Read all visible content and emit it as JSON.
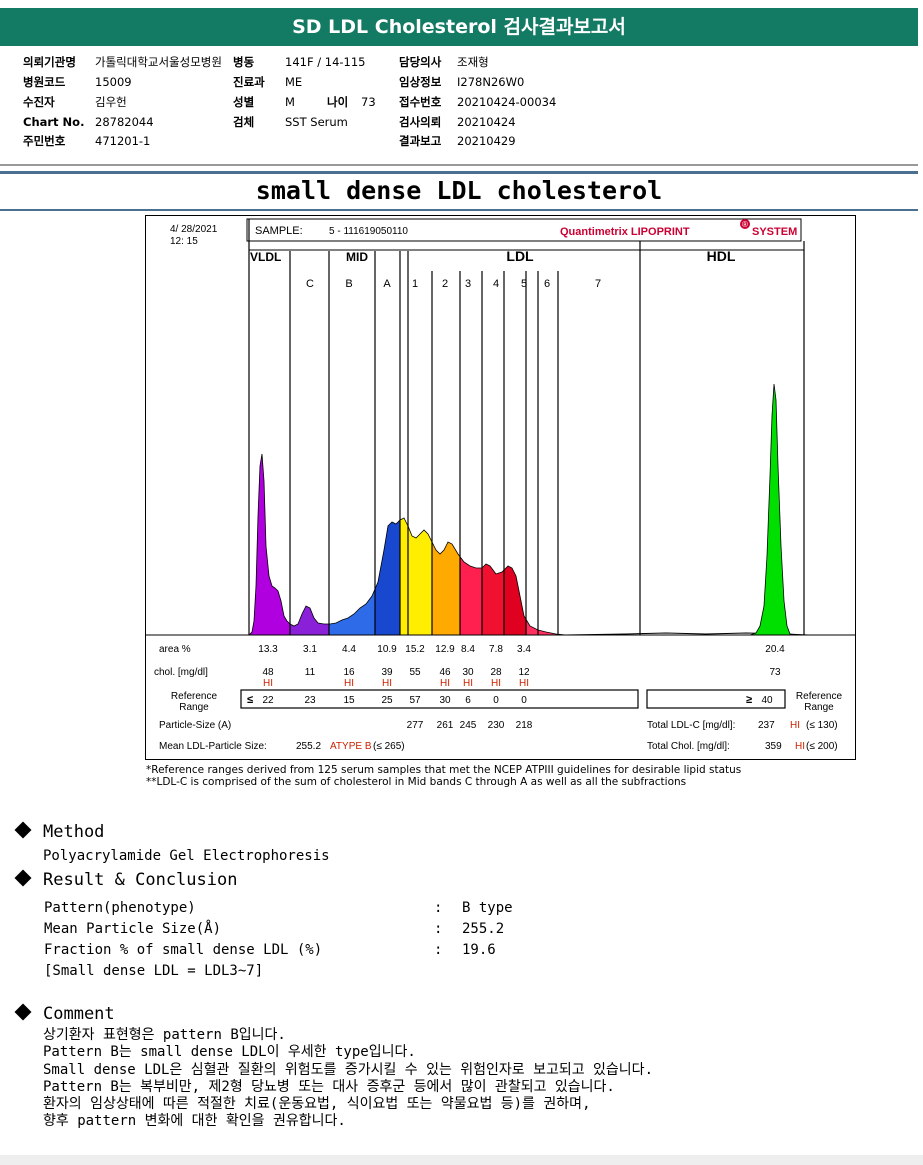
{
  "header": {
    "title": "SD LDL Cholesterol 검사결과보고서"
  },
  "patient": {
    "rows": [
      [
        {
          "k": "의뢰기관명",
          "v": "가톨릭대학교서울성모병원"
        },
        {
          "k": "병동",
          "v": "141F / 14-115"
        },
        {
          "k": "담당의사",
          "v": "조재형"
        }
      ],
      [
        {
          "k": "병원코드",
          "v": "15009"
        },
        {
          "k": "진료과",
          "v": "ME"
        },
        {
          "k": "임상정보",
          "v": "I278N26W0"
        }
      ],
      [
        {
          "k": "수진자",
          "v": "김우헌"
        },
        {
          "k": "성별",
          "v": "M"
        },
        {
          "k": "접수번호",
          "v": "20210424-00034"
        }
      ],
      [
        {
          "k": "Chart No.",
          "v": "28782044"
        },
        {
          "k": "검체",
          "v": "SST Serum"
        },
        {
          "k": "검사의뢰",
          "v": "20210424"
        }
      ],
      [
        {
          "k": "주민번호",
          "v": "471201-1"
        },
        {
          "k": "",
          "v": ""
        },
        {
          "k": "결과보고",
          "v": "20210429"
        }
      ]
    ],
    "age_label": "나이",
    "age": "73"
  },
  "doc_title": "small dense LDL cholesterol",
  "lipoprint": {
    "date": "4/ 28/2021",
    "time": "12: 15",
    "sample_label": "SAMPLE:",
    "sample": "5 - 111619050110",
    "brand": "Quantimetrix LIPOPRINT",
    "brand_sup": "®",
    "brand_system": "SYSTEM",
    "groups": {
      "vldl": "VLDL",
      "mid": "MID",
      "ldl": "LDL",
      "hdl": "HDL"
    },
    "band_labels": [
      "C",
      "B",
      "A",
      "1",
      "2",
      "3",
      "4",
      "5",
      "6",
      "7"
    ],
    "row_labels": {
      "area": "area %",
      "chol": "chol. [mg/dl]",
      "ref": "Reference Range",
      "ref_right": "Reference Range",
      "psize": "Particle-Size (A)",
      "mean": "Mean LDL-Particle Size:"
    },
    "area": [
      "13.3",
      "3.1",
      "4.4",
      "10.9",
      "15.2",
      "12.9",
      "8.4",
      "7.8",
      "3.4",
      "20.4"
    ],
    "chol": [
      "48",
      "11",
      "16",
      "39",
      "55",
      "46",
      "30",
      "28",
      "12",
      "73"
    ],
    "hi_flags": [
      "HI",
      "",
      "HI",
      "HI",
      "",
      "HI",
      "HI",
      "HI",
      "HI",
      ""
    ],
    "hi_text": "HI",
    "ref_le": "≤",
    "ref_ge": "≥",
    "ref": [
      "22",
      "23",
      "15",
      "25",
      "57",
      "30",
      "6",
      "0",
      "0",
      "40"
    ],
    "psize": [
      "277",
      "261",
      "245",
      "230",
      "218"
    ],
    "mean_value": "255.2",
    "mean_type": "ATYPE B",
    "mean_ref": "(≤ 265)",
    "total_ldl_label": "Total LDL-C [mg/dl]:",
    "total_ldl_value": "237",
    "total_ldl_ref": "(≤ 130)",
    "total_chol_label": "Total Chol. [mg/dl]:",
    "total_chol_value": "359",
    "total_chol_ref": "(≤ 200)",
    "hi_color": "#cc2200",
    "brand_color": "#cc0033"
  },
  "footnotes": [
    "*Reference ranges derived from 125 serum samples that met the NCEP ATPIII guidelines for desirable lipid status",
    "**LDL-C is comprised of the sum of cholesterol in Mid bands C through A as well as all the subfractions"
  ],
  "method": {
    "title": "Method",
    "text": "Polyacrylamide Gel Electrophoresis"
  },
  "result": {
    "title": "Result & Conclusion",
    "items": [
      {
        "label": "Pattern(phenotype)",
        "colon": ":",
        "value": "B type"
      },
      {
        "label": "Mean Particle Size(Å)",
        "colon": ":",
        "value": "255.2"
      },
      {
        "label": "Fraction % of small dense LDL (%)",
        "colon": ":",
        "value": "19.6"
      }
    ],
    "note": "[Small dense LDL = LDL3~7]"
  },
  "comment": {
    "title": "Comment",
    "lines": [
      "상기환자 표현형은 pattern B입니다.",
      "Pattern B는 small dense LDL이 우세한 type입니다.",
      "Small dense LDL은 심혈관 질환의 위험도를 증가시킬 수 있는 위험인자로 보고되고 있습니다.",
      "Pattern B는 복부비만, 제2형 당뇨병 또는 대사 증후군 등에서 많이 관찰되고 있습니다.",
      "환자의 임상상태에 따른 적절한 치료(운동요법, 식이요법 또는 약물요법 등)를 권하며,",
      "향후 pattern 변화에 대한 확인을 권유합니다."
    ]
  }
}
